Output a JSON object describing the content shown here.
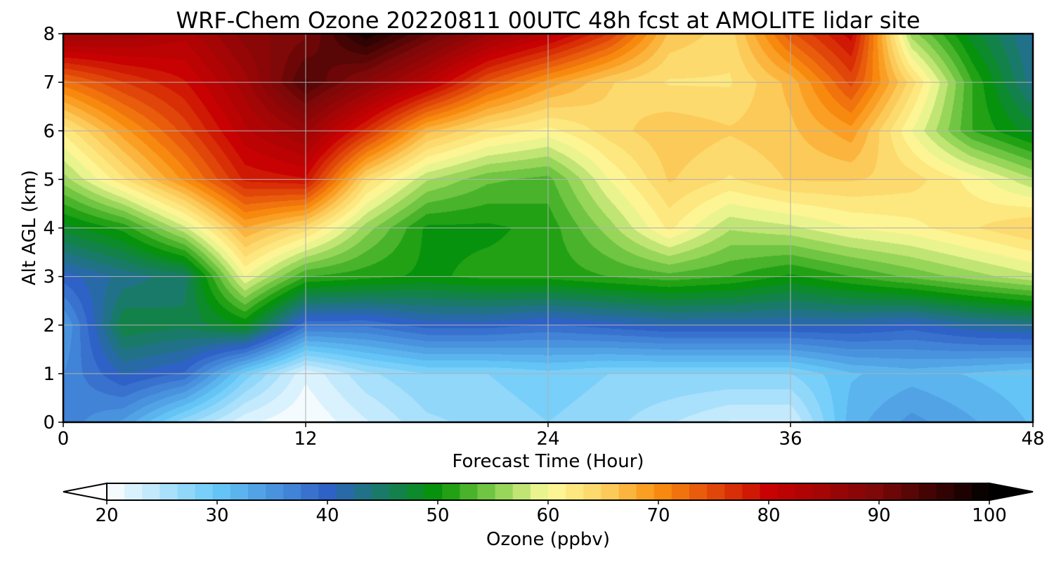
{
  "chart_data": {
    "type": "heatmap",
    "title": "WRF-Chem Ozone  20220811 00UTC 48h fcst at AMOLITE lidar site",
    "xlabel": "Forecast Time (Hour)",
    "ylabel": "Alt AGL (km)",
    "xlim": [
      0,
      48
    ],
    "ylim": [
      0,
      8
    ],
    "xticks": [
      0,
      12,
      24,
      36,
      48
    ],
    "yticks": [
      0,
      1,
      2,
      3,
      4,
      5,
      6,
      7,
      8
    ],
    "grid": true,
    "colorbar": {
      "label": "Ozone  (ppbv)",
      "min": 20,
      "max": 100,
      "ticks": [
        20,
        30,
        40,
        50,
        60,
        70,
        80,
        90,
        100
      ],
      "extend": "both",
      "colors": [
        {
          "v": 20,
          "c": "#ffffff"
        },
        {
          "v": 30,
          "c": "#66c8f8"
        },
        {
          "v": 40,
          "c": "#2f62c6"
        },
        {
          "v": 50,
          "c": "#049404"
        },
        {
          "v": 55,
          "c": "#7fcc4a"
        },
        {
          "v": 60,
          "c": "#fdfc9c"
        },
        {
          "v": 65,
          "c": "#fcd262"
        },
        {
          "v": 70,
          "c": "#fa8f10"
        },
        {
          "v": 80,
          "c": "#c80202"
        },
        {
          "v": 90,
          "c": "#7c0808"
        },
        {
          "v": 100,
          "c": "#000000"
        }
      ]
    },
    "hours": [
      0,
      3,
      6,
      9,
      12,
      15,
      18,
      21,
      24,
      27,
      30,
      33,
      36,
      39,
      42,
      45,
      48
    ],
    "altitudes_km": [
      0,
      1,
      2,
      3,
      4,
      5,
      6,
      7,
      8
    ],
    "ozone_ppbv": [
      [
        37,
        34,
        27,
        22,
        20,
        23,
        26,
        27,
        28,
        27,
        25,
        23,
        23,
        32,
        35,
        33,
        31
      ],
      [
        36,
        41,
        39,
        29,
        22,
        26,
        28,
        28,
        29,
        28,
        28,
        28,
        28,
        31,
        32,
        31,
        30
      ],
      [
        34,
        47,
        46,
        49,
        38,
        38,
        40,
        40,
        39,
        40,
        41,
        41,
        41,
        41,
        40,
        42,
        43
      ],
      [
        40,
        43,
        45,
        60,
        52,
        51,
        50,
        51,
        51,
        52,
        53,
        52,
        50,
        52,
        54,
        56,
        58
      ],
      [
        48,
        51,
        58,
        68,
        64,
        56,
        50,
        50,
        51,
        56,
        62,
        57,
        58,
        60,
        61,
        63,
        65
      ],
      [
        56,
        63,
        70,
        78,
        79,
        64,
        57,
        54,
        53,
        60,
        65,
        63,
        65,
        65,
        64,
        61,
        57
      ],
      [
        62,
        69,
        75,
        82,
        86,
        77,
        67,
        63,
        61,
        64,
        66,
        65,
        66,
        69,
        60,
        52,
        48
      ],
      [
        72,
        76,
        79,
        85,
        94,
        88,
        82,
        74,
        69,
        65,
        63,
        63,
        67,
        75,
        64,
        52,
        43
      ],
      [
        86,
        85,
        83,
        88,
        90,
        98,
        92,
        86,
        82,
        76,
        66,
        64,
        74,
        80,
        56,
        48,
        42
      ]
    ]
  }
}
